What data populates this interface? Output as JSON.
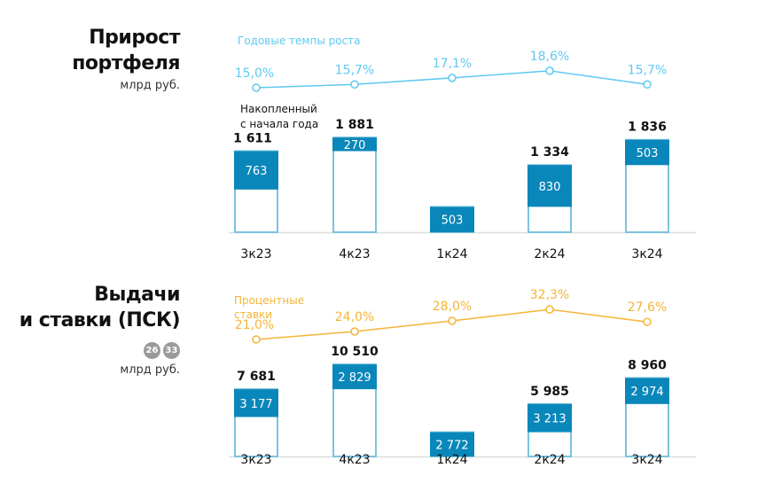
{
  "section1": {
    "title_line1": "Прирост",
    "title_line2": "портфеля",
    "unit": "млрд руб."
  },
  "section2": {
    "title_line1": "Выдачи",
    "title_line2": "и ставки (ПСК)",
    "badges": [
      "26",
      "33"
    ],
    "unit": "млрд руб."
  },
  "colors": {
    "bar_highlight": "#0a87ba",
    "bar_outline": "#7cc3df",
    "growth_line": "#5ec9f2",
    "rate_line": "#f6b437",
    "axis": "#dddddd"
  },
  "chart_data": [
    {
      "type": "bar",
      "categories": [
        "3к23",
        "4к23",
        "1к24",
        "2к24",
        "3к24"
      ],
      "series": [
        {
          "name": "Накопленный с начала года",
          "values": [
            1611,
            1881,
            503,
            1334,
            1836
          ],
          "labels": [
            "1 611",
            "1 881",
            "",
            "1 334",
            "1 836"
          ]
        },
        {
          "values": [
            763,
            270,
            503,
            830,
            503
          ],
          "labels": [
            "763",
            "270",
            "503",
            "830",
            "503"
          ]
        }
      ],
      "series_label": "Накопленный\nс начала года",
      "line": {
        "name": "Годовые темпы роста",
        "values": [
          15.0,
          15.7,
          17.1,
          18.6,
          15.7
        ],
        "labels": [
          "15,0%",
          "15,7%",
          "17,1%",
          "18,6%",
          "15,7%"
        ]
      }
    },
    {
      "type": "bar",
      "categories": [
        "3к23",
        "4к23",
        "1к24",
        "2к24",
        "3к24"
      ],
      "series": [
        {
          "values": [
            7681,
            10510,
            2772,
            5985,
            8960
          ],
          "labels": [
            "7 681",
            "10 510",
            "",
            "5 985",
            "8 960"
          ]
        },
        {
          "values": [
            3177,
            2829,
            2772,
            3213,
            2974
          ],
          "labels": [
            "3 177",
            "2 829",
            "2 772",
            "3 213",
            "2 974"
          ]
        }
      ],
      "line": {
        "name": "Процентные\nставки",
        "values": [
          21.0,
          24.0,
          28.0,
          32.3,
          27.6
        ],
        "labels": [
          "21,0%",
          "24,0%",
          "28,0%",
          "32,3%",
          "27,6%"
        ]
      }
    }
  ]
}
